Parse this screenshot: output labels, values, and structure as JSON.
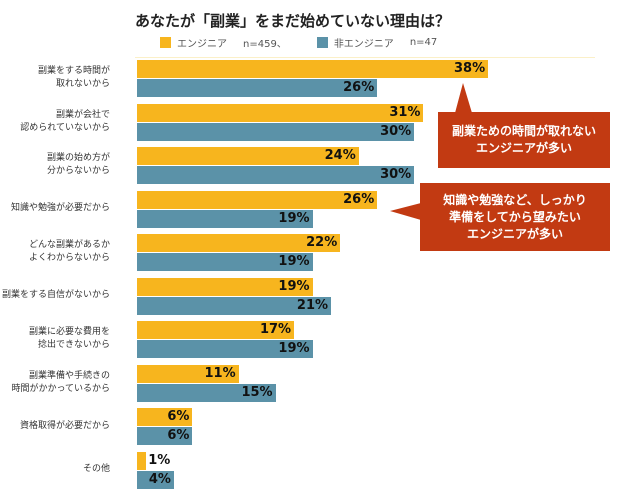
{
  "chart_data": {
    "type": "bar",
    "orientation": "horizontal",
    "title": "あなたが「副業」をまだ始めていない理由は？",
    "unit": "%",
    "categories": [
      "副業をする時間が\n取れないから",
      "副業が会社で\n認められていないから",
      "副業の始め方が\n分からないから",
      "知識や勉強が必要だから",
      "どんな副業があるか\nよくわからないから",
      "副業をする自信がないから",
      "副業に必要な費用を\n捻出できないから",
      "副業準備や手続きの\n時間がかかっているから",
      "資格取得が必要だから",
      "その他"
    ],
    "series": [
      {
        "name": "エンジニア",
        "n_label": "n=459、",
        "color": "#f7b51e",
        "values": [
          38,
          31,
          24,
          26,
          22,
          19,
          17,
          11,
          6,
          1
        ]
      },
      {
        "name": "非エンジニア",
        "n_label": "n=47",
        "color": "#5b92a8",
        "values": [
          26,
          30,
          30,
          19,
          19,
          21,
          19,
          15,
          6,
          4
        ]
      }
    ],
    "xlim": [
      0,
      40
    ],
    "grid": false,
    "legend": "top",
    "annotations": [
      "副業ための時間が取れない\nエンジニアが多い",
      "知識や勉強など、しっかり\n準備をしてから望みたい\nエンジニアが多い"
    ],
    "callout_color": "#c23a12"
  }
}
